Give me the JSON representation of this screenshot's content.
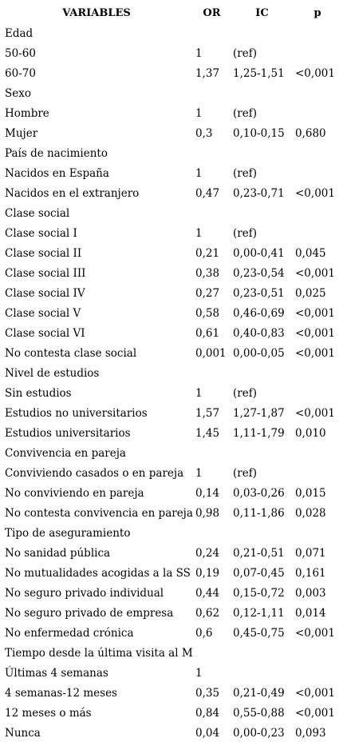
{
  "headers": {
    "variables": "VARIABLES",
    "or": "OR",
    "ic": "IC",
    "p": "p"
  },
  "rows": [
    {
      "variable": "Edad",
      "or": "",
      "ic": "",
      "p": ""
    },
    {
      "variable": "50-60",
      "or": "1",
      "ic": "(ref)",
      "p": ""
    },
    {
      "variable": "60-70",
      "or": "1,37",
      "ic": "1,25-1,51",
      "p": "<0,001"
    },
    {
      "variable": "Sexo",
      "or": "",
      "ic": "",
      "p": ""
    },
    {
      "variable": "Hombre",
      "or": "1",
      "ic": "(ref)",
      "p": ""
    },
    {
      "variable": "Mujer",
      "or": "0,3",
      "ic": "0,10-0,15",
      "p": "0,680"
    },
    {
      "variable": "País de nacimiento",
      "or": "",
      "ic": "",
      "p": ""
    },
    {
      "variable": "Nacidos en España",
      "or": "1",
      "ic": "(ref)",
      "p": ""
    },
    {
      "variable": "Nacidos en el extranjero",
      "or": "0,47",
      "ic": "0,23-0,71",
      "p": "<0,001"
    },
    {
      "variable": "Clase social",
      "or": "",
      "ic": "",
      "p": ""
    },
    {
      "variable": "Clase social I",
      "or": "1",
      "ic": "(ref)",
      "p": ""
    },
    {
      "variable": "Clase social II",
      "or": "0,21",
      "ic": "0,00-0,41",
      "p": "0,045"
    },
    {
      "variable": "Clase social III",
      "or": "0,38",
      "ic": "0,23-0,54",
      "p": "<0,001"
    },
    {
      "variable": "Clase social IV",
      "or": "0,27",
      "ic": "0,23-0,51",
      "p": "0,025"
    },
    {
      "variable": "Clase social V",
      "or": "0,58",
      "ic": "0,46-0,69",
      "p": "<0,001"
    },
    {
      "variable": "Clase social VI",
      "or": "0,61",
      "ic": "0,40-0,83",
      "p": "<0,001"
    },
    {
      "variable": "No contesta clase social",
      "or": "0,001",
      "ic": "0,00-0,05",
      "p": "<0,001"
    },
    {
      "variable": "Nivel de estudios",
      "or": "",
      "ic": "",
      "p": ""
    },
    {
      "variable": "Sin estudios",
      "or": "1",
      "ic": "(ref)",
      "p": ""
    },
    {
      "variable": "Estudios no universitarios",
      "or": "1,57",
      "ic": "1,27-1,87",
      "p": "<0,001"
    },
    {
      "variable": "Estudios universitarios",
      "or": "1,45",
      "ic": "1,11-1,79",
      "p": "0,010"
    },
    {
      "variable": "Convivencia en pareja",
      "or": "",
      "ic": "",
      "p": ""
    },
    {
      "variable": "Conviviendo casados o en pareja",
      "or": "1",
      "ic": "(ref)",
      "p": ""
    },
    {
      "variable": "No conviviendo en pareja",
      "or": "0,14",
      "ic": "0,03-0,26",
      "p": "0,015"
    },
    {
      "variable": "No contesta convivencia en pareja",
      "or": "0,98",
      "ic": "0,11-1,86",
      "p": "0,028"
    },
    {
      "variable": "Tipo de aseguramiento",
      "or": "",
      "ic": "",
      "p": ""
    },
    {
      "variable": "No sanidad pública",
      "or": "0,24",
      "ic": "0,21-0,51",
      "p": "0,071"
    },
    {
      "variable": "No mutualidades acogidas a la SS",
      "or": "0,19",
      "ic": "0,07-0,45",
      "p": "0,161"
    },
    {
      "variable": "No seguro privado individual",
      "or": "0,44",
      "ic": "0,15-0,72",
      "p": "0,003"
    },
    {
      "variable": "No seguro privado de empresa",
      "or": "0,62",
      "ic": "0,12-1,11",
      "p": "0,014"
    },
    {
      "variable": "No enfermedad crónica",
      "or": "0,6",
      "ic": "0,45-0,75",
      "p": "<0,001"
    },
    {
      "variable": "Tiempo desde la última visita al MF",
      "or": "",
      "ic": "",
      "p": ""
    },
    {
      "variable": "Últimas 4 semanas",
      "or": "1",
      "ic": "",
      "p": ""
    },
    {
      "variable": "4 semanas-12 meses",
      "or": "0,35",
      "ic": "0,21-0,49",
      "p": "<0,001"
    },
    {
      "variable": "12 meses o más",
      "or": "0,84",
      "ic": "0,55-0,88",
      "p": "<0,001"
    },
    {
      "variable": "Nunca",
      "or": "0,04",
      "ic": "0,00-0,23",
      "p": "0,093"
    }
  ]
}
